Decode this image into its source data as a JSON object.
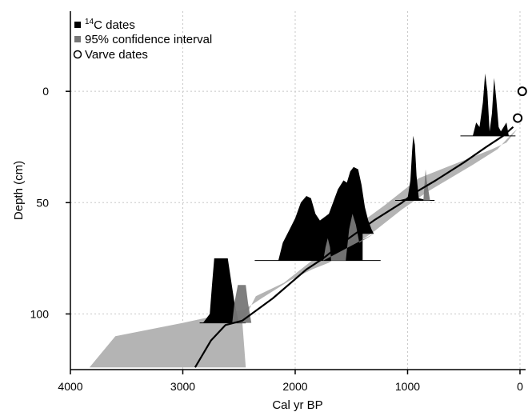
{
  "chart_data": {
    "type": "area",
    "xlabel": "Cal yr BP",
    "ylabel": "Depth (cm)",
    "xlim": [
      4000,
      -50
    ],
    "ylim": [
      125,
      -36
    ],
    "x_ticks": [
      4000,
      3000,
      2000,
      1000,
      0
    ],
    "y_ticks": [
      0,
      50,
      100
    ],
    "grid": true,
    "legend_position": "top-left",
    "legend": [
      {
        "symbol": "filled-square",
        "sup": "14",
        "label": "C dates",
        "color": "#000000"
      },
      {
        "symbol": "filled-square",
        "label": "95% confidence interval",
        "color": "#777777"
      },
      {
        "symbol": "open-circle",
        "label": "Varve dates",
        "color": "#000000"
      }
    ],
    "series": [
      {
        "kind": "confidence_interval",
        "color": "#b4b4b4",
        "upper_edge": [
          [
            25,
            17
          ],
          [
            70,
            19
          ],
          [
            200,
            26
          ],
          [
            420,
            33
          ],
          [
            820,
            45
          ],
          [
            1050,
            53
          ],
          [
            1300,
            63
          ],
          [
            1500,
            70
          ],
          [
            1700,
            77
          ],
          [
            1850,
            80
          ],
          [
            2050,
            85
          ],
          [
            2300,
            93
          ],
          [
            2450,
            98
          ],
          [
            3000,
            104
          ],
          [
            3600,
            110
          ],
          [
            3830,
            124
          ]
        ],
        "lower_edge": [
          [
            2440,
            124
          ],
          [
            2470,
            104
          ],
          [
            2350,
            92
          ],
          [
            2100,
            86
          ],
          [
            1900,
            78
          ],
          [
            1550,
            64
          ],
          [
            1200,
            51
          ],
          [
            900,
            39
          ],
          [
            650,
            34
          ],
          [
            450,
            30
          ],
          [
            250,
            26
          ],
          [
            120,
            23
          ],
          [
            25,
            17
          ]
        ]
      },
      {
        "kind": "age_depth_model",
        "color": "#000000",
        "points": [
          [
            2890,
            124
          ],
          [
            2750,
            112
          ],
          [
            2620,
            105
          ],
          [
            2470,
            103
          ],
          [
            2200,
            93
          ],
          [
            1900,
            80
          ],
          [
            1750,
            75
          ],
          [
            1550,
            67
          ],
          [
            1300,
            58
          ],
          [
            1050,
            50
          ],
          [
            950,
            46
          ],
          [
            750,
            40
          ],
          [
            500,
            32
          ],
          [
            300,
            25
          ],
          [
            150,
            20
          ],
          [
            60,
            16
          ]
        ]
      },
      {
        "kind": "c14_date",
        "color": "#000000",
        "baseline_depth": 104,
        "points": [
          [
            2820,
            104
          ],
          [
            2760,
            100
          ],
          [
            2740,
            87
          ],
          [
            2720,
            75
          ],
          [
            2650,
            75
          ],
          [
            2600,
            75
          ],
          [
            2570,
            85
          ],
          [
            2540,
            95
          ],
          [
            2500,
            104
          ]
        ]
      },
      {
        "kind": "c14_date_ci",
        "color": "#777777",
        "baseline_depth": 104,
        "points": [
          [
            2560,
            104
          ],
          [
            2540,
            95
          ],
          [
            2510,
            87
          ],
          [
            2440,
            87
          ],
          [
            2420,
            95
          ],
          [
            2390,
            104
          ]
        ]
      },
      {
        "kind": "c14_date",
        "color": "#000000",
        "baseline_depth": 76,
        "points": [
          [
            2330,
            76
          ],
          [
            2150,
            76
          ],
          [
            2110,
            68
          ],
          [
            2050,
            62
          ],
          [
            2000,
            57
          ],
          [
            1950,
            50
          ],
          [
            1900,
            47
          ],
          [
            1860,
            48
          ],
          [
            1820,
            55
          ],
          [
            1780,
            58
          ],
          [
            1700,
            55
          ],
          [
            1620,
            44
          ],
          [
            1570,
            40
          ],
          [
            1540,
            41
          ],
          [
            1510,
            36
          ],
          [
            1480,
            34
          ],
          [
            1440,
            35
          ],
          [
            1410,
            42
          ],
          [
            1380,
            52
          ],
          [
            1350,
            58
          ],
          [
            1320,
            62
          ],
          [
            1300,
            64
          ],
          [
            1400,
            64
          ],
          [
            1400,
            76
          ],
          [
            1500,
            76
          ]
        ]
      },
      {
        "kind": "c14_date_ci",
        "color": "#777777",
        "baseline_depth": 76,
        "points": [
          [
            1750,
            76
          ],
          [
            1730,
            70
          ],
          [
            1710,
            66
          ],
          [
            1690,
            70
          ],
          [
            1680,
            76
          ],
          [
            1550,
            76
          ],
          [
            1520,
            62
          ],
          [
            1490,
            55
          ],
          [
            1460,
            60
          ],
          [
            1430,
            68
          ],
          [
            1300,
            64
          ]
        ]
      },
      {
        "kind": "c14_date",
        "color": "#000000",
        "baseline_depth": 49,
        "points": [
          [
            1080,
            49
          ],
          [
            1000,
            48
          ],
          [
            975,
            40
          ],
          [
            960,
            27
          ],
          [
            950,
            20
          ],
          [
            935,
            24
          ],
          [
            920,
            38
          ],
          [
            900,
            48
          ],
          [
            820,
            49
          ]
        ]
      },
      {
        "kind": "c14_date_ci",
        "color": "#777777",
        "baseline_depth": 49,
        "points": [
          [
            860,
            49
          ],
          [
            850,
            42
          ],
          [
            840,
            35
          ],
          [
            830,
            40
          ],
          [
            800,
            49
          ]
        ]
      },
      {
        "kind": "c14_date",
        "color": "#000000",
        "baseline_depth": 20,
        "points": [
          [
            500,
            20
          ],
          [
            420,
            20
          ],
          [
            390,
            14
          ],
          [
            360,
            16
          ],
          [
            330,
            5
          ],
          [
            310,
            -8
          ],
          [
            290,
            0
          ],
          [
            270,
            18
          ],
          [
            250,
            10
          ],
          [
            230,
            -6
          ],
          [
            210,
            4
          ],
          [
            190,
            16
          ],
          [
            170,
            18
          ],
          [
            120,
            14
          ],
          [
            100,
            20
          ]
        ]
      },
      {
        "kind": "varve_dates",
        "color": "#000000",
        "points": [
          [
            -20,
            0
          ],
          [
            20,
            12
          ]
        ]
      }
    ]
  }
}
